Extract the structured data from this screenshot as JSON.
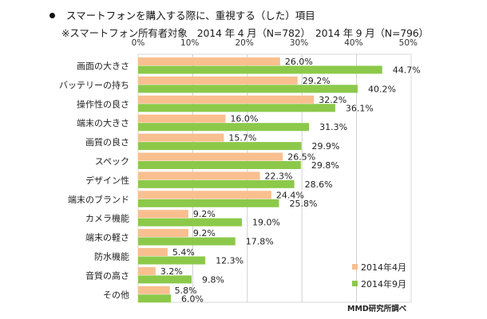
{
  "chart_data": {
    "type": "bar",
    "orientation": "horizontal",
    "title": "スマートフォンを購入する際に、重視する（した）項目",
    "subtitle": "※スマートフォン所有者対象　2014 年 4 月（N=782）　2014 年 9 月（N=796）",
    "categories": [
      "画面の大きさ",
      "バッテリーの持ち",
      "操作性の良さ",
      "端末の大きさ",
      "画質の良さ",
      "スペック",
      "デザイン性",
      "端末のブランド",
      "カメラ機能",
      "端末の軽さ",
      "防水機能",
      "音質の高さ",
      "その他"
    ],
    "series": [
      {
        "name": "2014年4月",
        "color": "#f9bf8f",
        "values": [
          26.0,
          29.2,
          32.2,
          16.0,
          15.7,
          26.5,
          22.3,
          24.4,
          9.2,
          9.2,
          5.4,
          3.2,
          5.8
        ]
      },
      {
        "name": "2014年9月",
        "color": "#8cc94a",
        "values": [
          44.7,
          40.2,
          36.1,
          31.3,
          29.9,
          29.8,
          28.6,
          25.8,
          19.0,
          17.8,
          12.3,
          9.8,
          6.0
        ]
      }
    ],
    "xlim": [
      0,
      50
    ],
    "xticks": [
      "0%",
      "10%",
      "20%",
      "30%",
      "40%",
      "50%"
    ],
    "grid": true,
    "legend_position": "bottom-right",
    "source": "MMD研究所調べ"
  },
  "labels": {
    "values_4": [
      "26.0%",
      "29.2%",
      "32.2%",
      "16.0%",
      "15.7%",
      "26.5%",
      "22.3%",
      "24.4%",
      "9.2%",
      "9.2%",
      "5.4%",
      "3.2%",
      "5.8%"
    ],
    "values_9": [
      "44.7%",
      "40.2%",
      "36.1%",
      "31.3%",
      "29.9%",
      "29.8%",
      "28.6%",
      "25.8%",
      "19.0%",
      "17.8%",
      "12.3%",
      "9.8%",
      "6.0%"
    ]
  }
}
